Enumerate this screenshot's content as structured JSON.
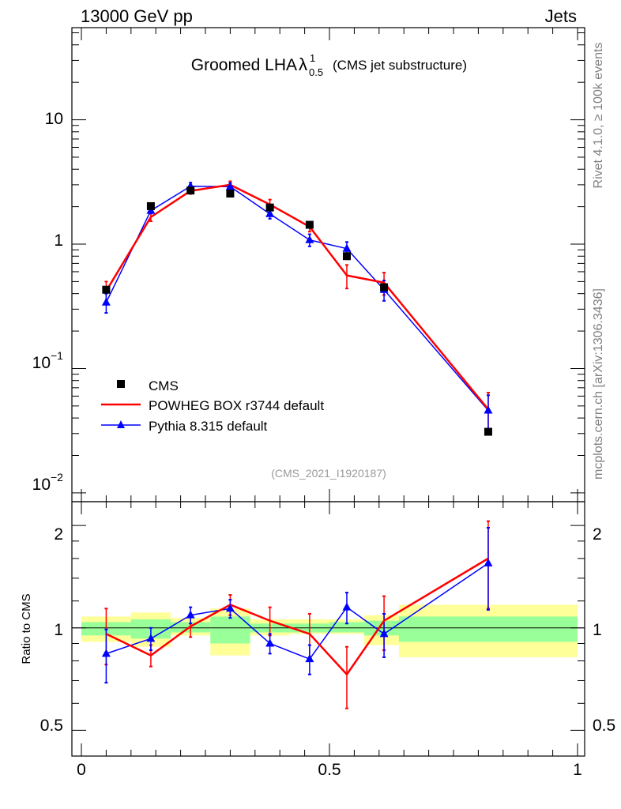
{
  "chart_data": [
    {
      "type": "line",
      "panel": "main",
      "header_left": "13000 GeV pp",
      "header_right": "Jets",
      "title": "Groomed LHA",
      "title_symbol": "λ",
      "title_sup": "1",
      "title_sub": "0.5",
      "title_suffix": "(CMS jet substructure)",
      "yscale": "log",
      "ylim": [
        0.0085,
        55
      ],
      "xlim": [
        -0.02,
        1.0
      ],
      "y_ticks": [
        {
          "label": "10",
          "value": 10
        },
        {
          "label": "1",
          "value": 1
        },
        {
          "label": "10",
          "sup": "−1",
          "value": 0.1
        },
        {
          "label": "10",
          "sup": "−2",
          "value": 0.01
        }
      ],
      "legend_position": "middle-left",
      "watermark": "(CMS_2021_I1920187)",
      "series": [
        {
          "name": "CMS",
          "style": "markers",
          "marker": "square",
          "color": "#000000",
          "x": [
            0.05,
            0.14,
            0.22,
            0.3,
            0.38,
            0.46,
            0.535,
            0.61,
            0.82
          ],
          "y": [
            0.43,
            2.02,
            2.7,
            2.55,
            1.97,
            1.43,
            0.8,
            0.45,
            0.031
          ]
        },
        {
          "name": "POWHEG BOX r3744 default",
          "style": "line",
          "color": "#ff0000",
          "x": [
            0.05,
            0.14,
            0.22,
            0.3,
            0.38,
            0.46,
            0.535,
            0.61,
            0.82
          ],
          "y": [
            0.42,
            1.65,
            2.68,
            3.0,
            2.08,
            1.38,
            0.56,
            0.49,
            0.047
          ],
          "err": [
            0.08,
            0.12,
            0.15,
            0.2,
            0.2,
            0.12,
            0.12,
            0.1,
            0.017
          ]
        },
        {
          "name": "Pythia 8.315 default",
          "style": "line-markers",
          "marker": "triangle",
          "color": "#0000ff",
          "x": [
            0.05,
            0.14,
            0.22,
            0.3,
            0.38,
            0.46,
            0.535,
            0.61,
            0.82
          ],
          "y": [
            0.34,
            1.86,
            2.92,
            2.9,
            1.75,
            1.08,
            0.92,
            0.43,
            0.046
          ],
          "err": [
            0.06,
            0.1,
            0.2,
            0.2,
            0.15,
            0.12,
            0.12,
            0.08,
            0.015
          ]
        }
      ]
    },
    {
      "type": "line",
      "panel": "ratio",
      "ylabel": "Ratio to CMS",
      "yscale": "log",
      "ylim": [
        0.42,
        2.35
      ],
      "xlim": [
        -0.02,
        1.0
      ],
      "y_ticks": [
        {
          "label": "2",
          "value": 2
        },
        {
          "label": "1",
          "value": 1
        },
        {
          "label": "0.5",
          "value": 0.5
        }
      ],
      "x_ticks": [
        {
          "label": "0",
          "value": 0
        },
        {
          "label": "0.5",
          "value": 0.5
        },
        {
          "label": "1",
          "value": 1
        }
      ],
      "reference_line": 1.0,
      "bands": {
        "edges": [
          0.0,
          0.1,
          0.18,
          0.26,
          0.34,
          0.42,
          0.5,
          0.57,
          0.64,
          1.0
        ],
        "yellow_lo": [
          0.91,
          0.88,
          0.95,
          0.83,
          0.95,
          0.96,
          0.96,
          0.89,
          0.82
        ],
        "yellow_hi": [
          1.08,
          1.11,
          1.07,
          1.14,
          1.06,
          1.06,
          1.06,
          1.09,
          1.17
        ],
        "green_lo": [
          0.95,
          0.93,
          0.97,
          0.9,
          0.97,
          0.97,
          0.97,
          0.95,
          0.91
        ],
        "green_hi": [
          1.04,
          1.06,
          1.04,
          1.08,
          1.03,
          1.03,
          1.04,
          1.05,
          1.08
        ]
      },
      "series": [
        {
          "name": "POWHEG BOX r3744 default",
          "color": "#ff0000",
          "x": [
            0.05,
            0.14,
            0.22,
            0.3,
            0.38,
            0.46,
            0.535,
            0.61,
            0.82
          ],
          "y": [
            0.96,
            0.83,
            1.01,
            1.17,
            1.05,
            0.96,
            0.73,
            1.05,
            1.6
          ],
          "err": [
            0.18,
            0.06,
            0.07,
            0.08,
            0.1,
            0.14,
            0.15,
            0.19,
            0.46
          ]
        },
        {
          "name": "Pythia 8.315 default",
          "color": "#0000ff",
          "x": [
            0.05,
            0.14,
            0.22,
            0.3,
            0.38,
            0.46,
            0.535,
            0.61,
            0.82
          ],
          "y": [
            0.84,
            0.93,
            1.09,
            1.14,
            0.9,
            0.81,
            1.15,
            0.96,
            1.55
          ],
          "err": [
            0.15,
            0.07,
            0.06,
            0.07,
            0.06,
            0.08,
            0.12,
            0.14,
            0.42
          ]
        }
      ]
    }
  ],
  "side_labels": {
    "top": "Rivet 4.1.0, ≥ 100k events",
    "bottom": "mcplots.cern.ch [arXiv:1306.3436]"
  }
}
